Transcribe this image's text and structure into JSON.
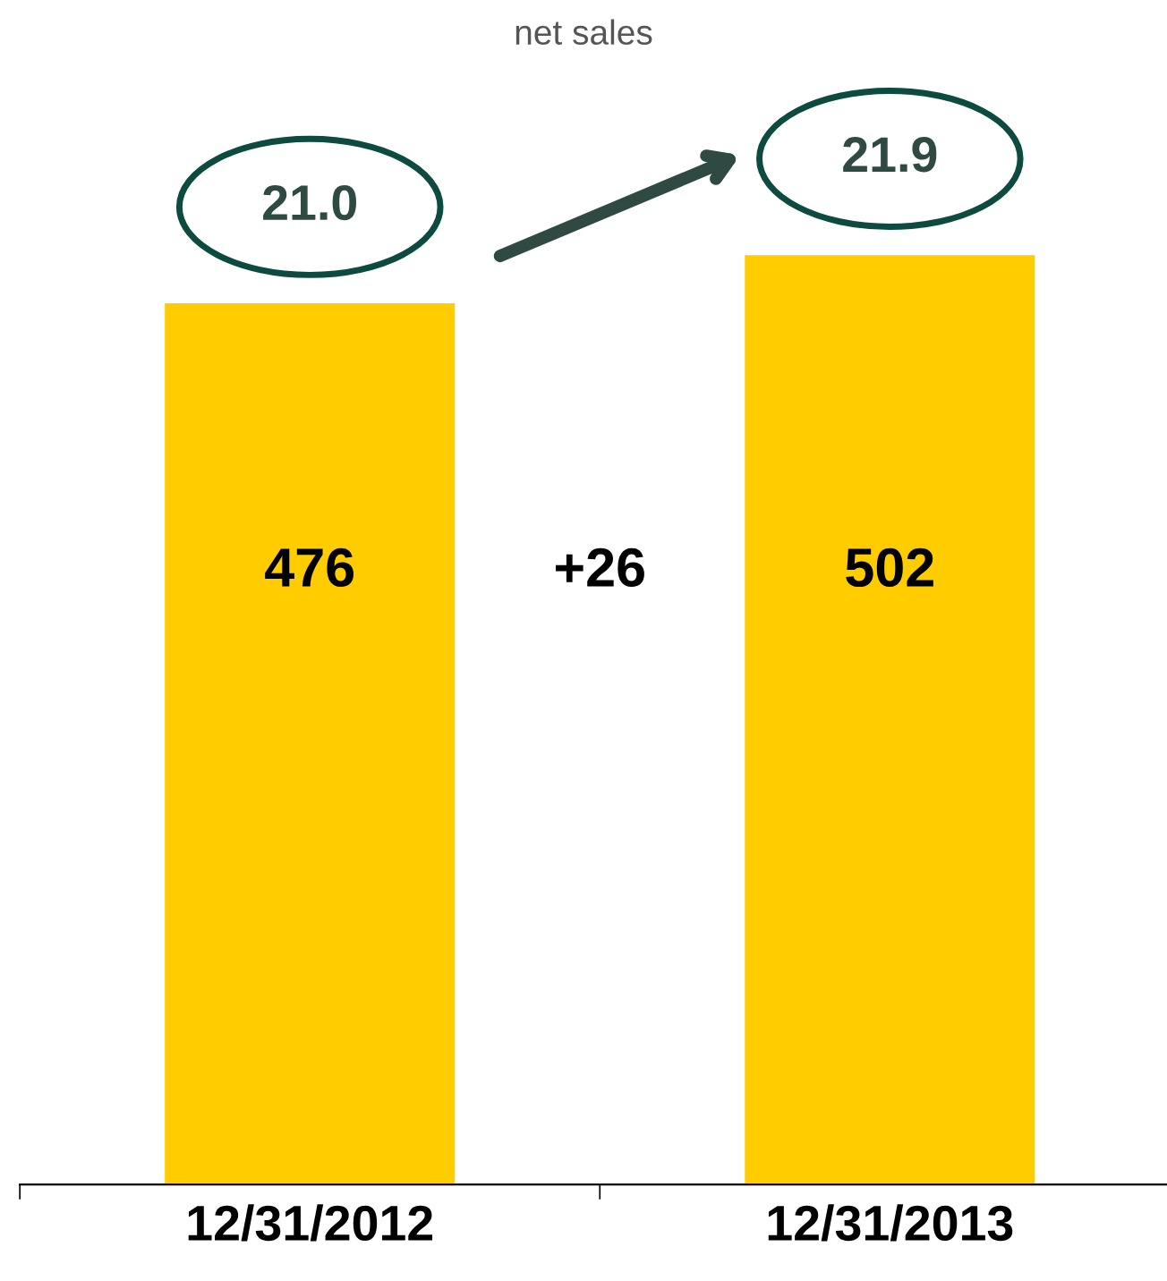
{
  "chart_data": {
    "type": "bar",
    "categories": [
      "12/31/2012",
      "12/31/2013"
    ],
    "values": [
      476,
      502
    ],
    "color": "#ffcc00",
    "data_labels": true,
    "tick_labels": "x",
    "annotations": [
      "net sales",
      "21.0",
      "21.9",
      "+26"
    ]
  }
}
